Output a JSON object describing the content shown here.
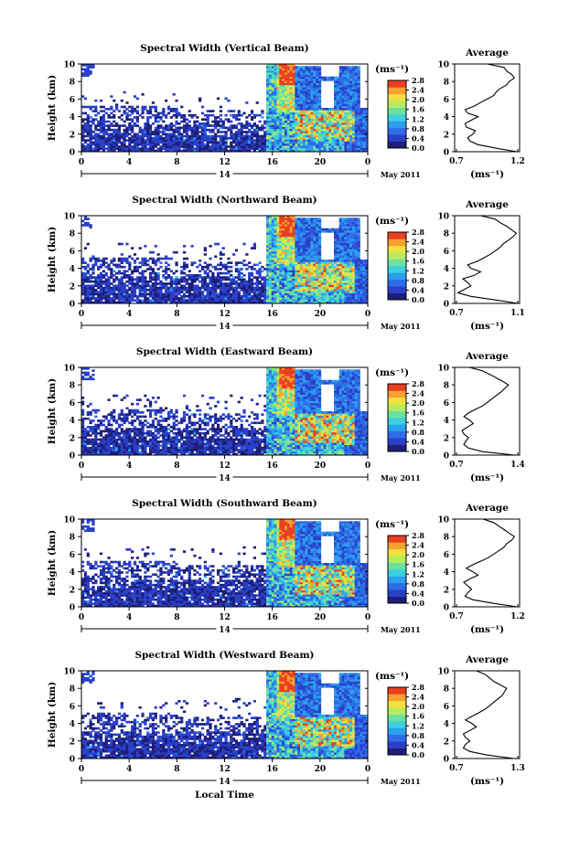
{
  "common": {
    "ylabel": "Height (km)",
    "yticks": [
      "0",
      "2",
      "4",
      "6",
      "8",
      "10"
    ],
    "xticks": [
      "0",
      "4",
      "8",
      "12",
      "16",
      "20",
      "0"
    ],
    "day_label": "14",
    "month_label": "May 2011",
    "xlabel": "Local Time",
    "unit": "(ms⁻¹)",
    "colorbar_ticks": [
      "0.0",
      "0.4",
      "0.8",
      "1.2",
      "1.6",
      "2.0",
      "2.4",
      "2.8"
    ],
    "avg_title": "Average",
    "avg_unit": "(ms⁻¹)"
  },
  "chart_data": [
    {
      "type": "heatmap",
      "title": "Spectral Width (Vertical Beam)",
      "xlabel": "",
      "ylabel": "Height (km)",
      "xlim": [
        0,
        24
      ],
      "ylim": [
        0,
        10
      ],
      "zlim": [
        0,
        2.8
      ],
      "avg_profile": {
        "xlim": [
          0.7,
          1.2
        ],
        "xticks": [
          "0.7",
          "1.2"
        ],
        "x": [
          1.18,
          1.02,
          0.88,
          0.82,
          0.8,
          0.84,
          0.86,
          0.79,
          0.78,
          0.83,
          0.88,
          0.8,
          0.78,
          0.85,
          0.9,
          0.95,
          1.0,
          1.02,
          1.05,
          1.1,
          1.12,
          1.16,
          1.14,
          1.1,
          1.08,
          0.95
        ],
        "y": [
          0.0,
          0.4,
          0.8,
          1.2,
          1.6,
          2.0,
          2.4,
          2.8,
          3.2,
          3.6,
          4.0,
          4.4,
          4.8,
          5.2,
          5.6,
          6.0,
          6.4,
          6.8,
          7.2,
          7.6,
          8.0,
          8.4,
          8.8,
          9.2,
          9.6,
          10.0
        ]
      }
    },
    {
      "type": "heatmap",
      "title": "Spectral Width (Northward Beam)",
      "xlabel": "",
      "ylabel": "Height (km)",
      "xlim": [
        0,
        24
      ],
      "ylim": [
        0,
        10
      ],
      "zlim": [
        0,
        2.8
      ],
      "avg_profile": {
        "xlim": [
          0.7,
          1.1
        ],
        "xticks": [
          "0.7",
          "1.1"
        ],
        "x": [
          1.09,
          0.95,
          0.8,
          0.72,
          0.76,
          0.8,
          0.78,
          0.75,
          0.82,
          0.86,
          0.8,
          0.78,
          0.84,
          0.88,
          0.92,
          0.95,
          0.98,
          1.0,
          1.03,
          1.06,
          1.08,
          1.05,
          1.02,
          0.98,
          0.95,
          0.86
        ],
        "y": [
          0.0,
          0.4,
          0.8,
          1.2,
          1.6,
          2.0,
          2.4,
          2.8,
          3.2,
          3.6,
          4.0,
          4.4,
          4.8,
          5.2,
          5.6,
          6.0,
          6.4,
          6.8,
          7.2,
          7.6,
          8.0,
          8.4,
          8.8,
          9.2,
          9.6,
          10.0
        ]
      }
    },
    {
      "type": "heatmap",
      "title": "Spectral Width (Eastward Beam)",
      "xlabel": "",
      "ylabel": "Height (km)",
      "xlim": [
        0,
        24
      ],
      "ylim": [
        0,
        10
      ],
      "zlim": [
        0,
        2.8
      ],
      "avg_profile": {
        "xlim": [
          0.7,
          1.4
        ],
        "xticks": [
          "0.7",
          "1.4"
        ],
        "x": [
          1.35,
          1.0,
          0.85,
          0.8,
          0.82,
          0.85,
          0.8,
          0.78,
          0.84,
          0.9,
          0.86,
          0.8,
          0.85,
          0.92,
          1.0,
          1.05,
          1.1,
          1.15,
          1.2,
          1.24,
          1.28,
          1.22,
          1.15,
          1.08,
          1.0,
          0.86
        ],
        "y": [
          0.0,
          0.4,
          0.8,
          1.2,
          1.6,
          2.0,
          2.4,
          2.8,
          3.2,
          3.6,
          4.0,
          4.4,
          4.8,
          5.2,
          5.6,
          6.0,
          6.4,
          6.8,
          7.2,
          7.6,
          8.0,
          8.4,
          8.8,
          9.2,
          9.6,
          10.0
        ]
      }
    },
    {
      "type": "heatmap",
      "title": "Spectral Width (Southward Beam)",
      "xlabel": "",
      "ylabel": "Height (km)",
      "xlim": [
        0,
        24
      ],
      "ylim": [
        0,
        10
      ],
      "zlim": [
        0,
        2.8
      ],
      "avg_profile": {
        "xlim": [
          0.7,
          1.2
        ],
        "xticks": [
          "0.7",
          "1.2"
        ],
        "x": [
          1.18,
          1.0,
          0.84,
          0.78,
          0.8,
          0.83,
          0.8,
          0.77,
          0.82,
          0.88,
          0.84,
          0.79,
          0.84,
          0.9,
          0.96,
          1.0,
          1.04,
          1.08,
          1.1,
          1.14,
          1.16,
          1.12,
          1.08,
          1.04,
          1.0,
          0.92
        ],
        "y": [
          0.0,
          0.4,
          0.8,
          1.2,
          1.6,
          2.0,
          2.4,
          2.8,
          3.2,
          3.6,
          4.0,
          4.4,
          4.8,
          5.2,
          5.6,
          6.0,
          6.4,
          6.8,
          7.2,
          7.6,
          8.0,
          8.4,
          8.8,
          9.2,
          9.6,
          10.0
        ]
      }
    },
    {
      "type": "heatmap",
      "title": "Spectral Width (Westward Beam)",
      "xlabel": "Local Time",
      "ylabel": "Height (km)",
      "xlim": [
        0,
        24
      ],
      "ylim": [
        0,
        10
      ],
      "zlim": [
        0,
        2.8
      ],
      "avg_profile": {
        "xlim": [
          0.7,
          1.3
        ],
        "xticks": [
          "0.7",
          "1.3"
        ],
        "x": [
          1.25,
          1.0,
          0.84,
          0.78,
          0.8,
          0.84,
          0.8,
          0.78,
          0.84,
          0.9,
          0.86,
          0.8,
          0.86,
          0.92,
          0.98,
          1.02,
          1.06,
          1.1,
          1.14,
          1.16,
          1.18,
          1.12,
          1.06,
          1.02,
          0.98,
          0.9
        ],
        "y": [
          0.0,
          0.4,
          0.8,
          1.2,
          1.6,
          2.0,
          2.4,
          2.8,
          3.2,
          3.6,
          4.0,
          4.4,
          4.8,
          5.2,
          5.6,
          6.0,
          6.4,
          6.8,
          7.2,
          7.6,
          8.0,
          8.4,
          8.8,
          9.2,
          9.6,
          10.0
        ]
      }
    }
  ]
}
